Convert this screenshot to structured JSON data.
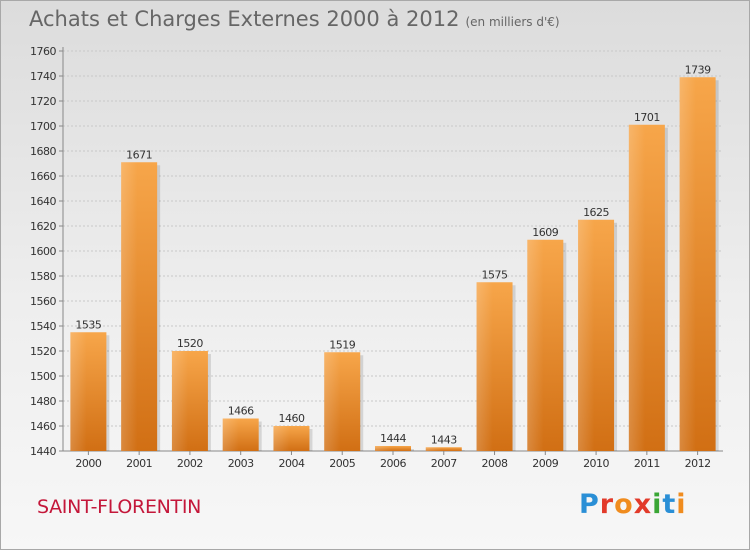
{
  "title": "Achats et Charges Externes 2000 à 2012",
  "subtitle": "(en milliers d'€)",
  "location": "SAINT-FLORENTIN",
  "logo": {
    "letters": [
      "P",
      "r",
      "o",
      "x",
      "i",
      "t",
      "i"
    ]
  },
  "colors": {
    "bar_top": "#f7a64a",
    "bar_bottom": "#d16f14",
    "location": "#c4173a"
  },
  "chart_data": {
    "type": "bar",
    "title": "Achats et Charges Externes 2000 à 2012",
    "subtitle": "(en milliers d'€)",
    "xlabel": "",
    "ylabel": "",
    "categories": [
      "2000",
      "2001",
      "2002",
      "2003",
      "2004",
      "2005",
      "2006",
      "2007",
      "2008",
      "2009",
      "2010",
      "2011",
      "2012"
    ],
    "values": [
      1535,
      1671,
      1520,
      1466,
      1460,
      1519,
      1444,
      1443,
      1575,
      1609,
      1625,
      1701,
      1739
    ],
    "ylim": [
      1440,
      1760
    ],
    "yticks": [
      1440,
      1460,
      1480,
      1500,
      1520,
      1540,
      1560,
      1580,
      1600,
      1620,
      1640,
      1660,
      1680,
      1700,
      1720,
      1740,
      1760
    ],
    "grid": true,
    "data_labels": true
  }
}
